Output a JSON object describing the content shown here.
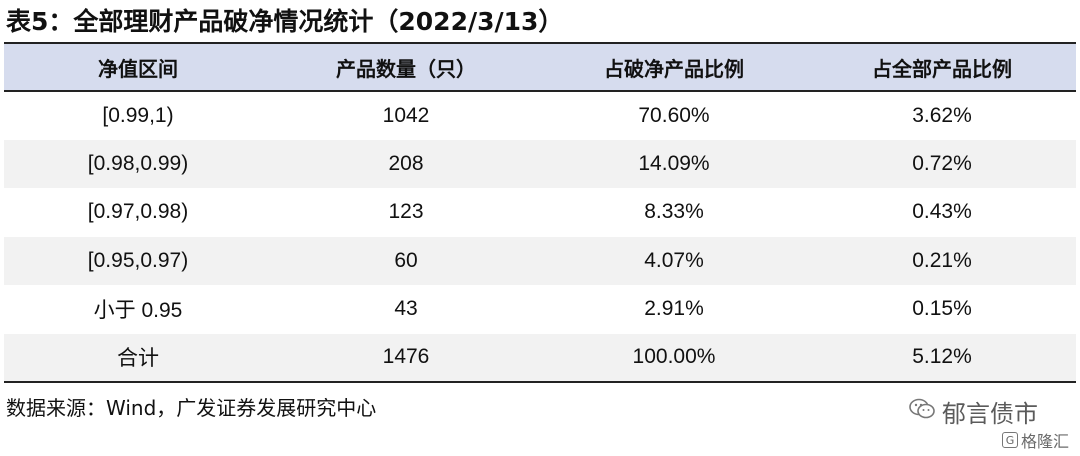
{
  "title": "表5：全部理财产品破净情况统计（2022/3/13）",
  "table": {
    "headers": [
      "净值区间",
      "产品数量（只）",
      "占破净产品比例",
      "占全部产品比例"
    ],
    "rows": [
      [
        "[0.99,1)",
        "1042",
        "70.60%",
        "3.62%"
      ],
      [
        "[0.98,0.99)",
        "208",
        "14.09%",
        "0.72%"
      ],
      [
        "[0.97,0.98)",
        "123",
        "8.33%",
        "0.43%"
      ],
      [
        "[0.95,0.97)",
        "60",
        "4.07%",
        "0.21%"
      ],
      [
        "小于 0.95",
        "43",
        "2.91%",
        "0.15%"
      ],
      [
        "合计",
        "1476",
        "100.00%",
        "5.12%"
      ]
    ]
  },
  "source": "数据来源：Wind，广发证券发展研究中心",
  "watermark": {
    "account": "郁言债市",
    "brand": "格隆汇"
  },
  "colors": {
    "header_bg": "#d6dcee",
    "stripe_bg": "#f2f2f2",
    "rule": "#222222"
  }
}
